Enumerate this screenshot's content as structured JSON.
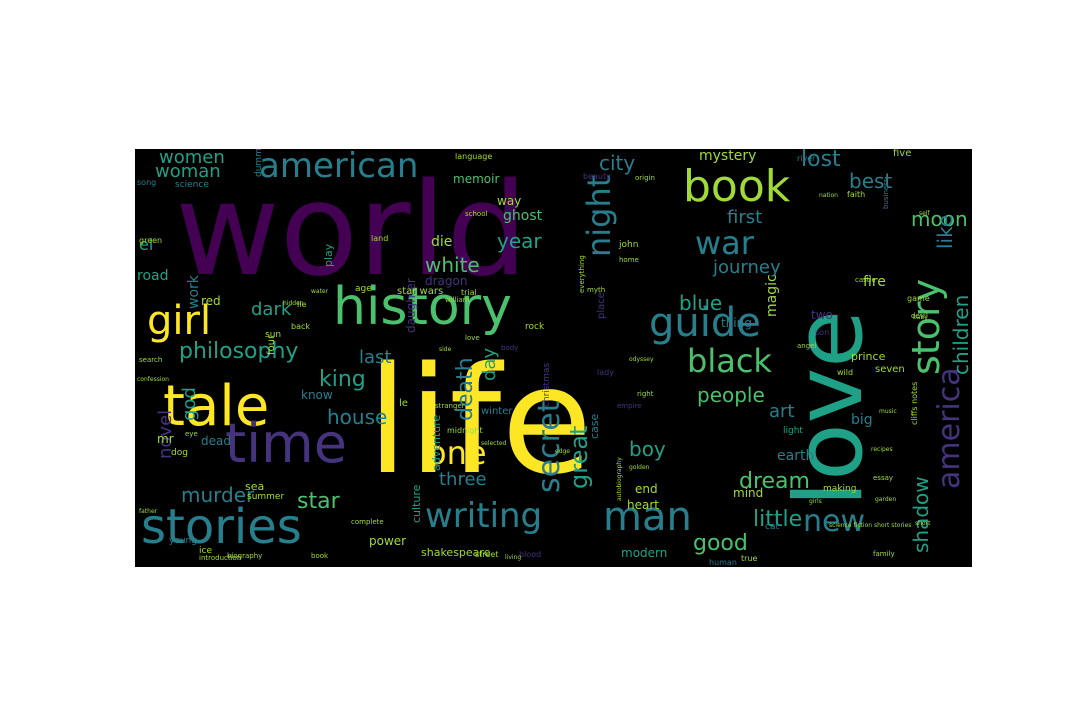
{
  "palette": {
    "purple": "#440154",
    "indigo": "#46337e",
    "slate": "#365c8d",
    "teal": "#277f8e",
    "green": "#1fa187",
    "lime": "#4ac16d",
    "chartreuse": "#a0da39",
    "yellow": "#fde725"
  },
  "words": [
    {
      "text": "world"
    },
    {
      "text": "life"
    },
    {
      "text": "love"
    },
    {
      "text": "history"
    },
    {
      "text": "tale"
    },
    {
      "text": "time"
    },
    {
      "text": "stories"
    },
    {
      "text": "book"
    },
    {
      "text": "guide"
    },
    {
      "text": "girl"
    },
    {
      "text": "man"
    },
    {
      "text": "writing"
    },
    {
      "text": "american"
    },
    {
      "text": "black"
    },
    {
      "text": "story"
    },
    {
      "text": "america"
    },
    {
      "text": "war"
    },
    {
      "text": "night"
    },
    {
      "text": "secret"
    },
    {
      "text": "one"
    },
    {
      "text": "new"
    },
    {
      "text": "philosophy"
    },
    {
      "text": "great"
    },
    {
      "text": "children"
    },
    {
      "text": "shadow"
    },
    {
      "text": "death"
    },
    {
      "text": "dream"
    },
    {
      "text": "little"
    },
    {
      "text": "good"
    },
    {
      "text": "people"
    },
    {
      "text": "king"
    },
    {
      "text": "house"
    },
    {
      "text": "star"
    },
    {
      "text": "murder"
    },
    {
      "text": "boy"
    },
    {
      "text": "city"
    },
    {
      "text": "lost"
    },
    {
      "text": "best"
    },
    {
      "text": "moon"
    },
    {
      "text": "like"
    },
    {
      "text": "first"
    },
    {
      "text": "year"
    },
    {
      "text": "white"
    },
    {
      "text": "blue"
    },
    {
      "text": "journey"
    },
    {
      "text": "women"
    },
    {
      "text": "woman"
    },
    {
      "text": "dark"
    },
    {
      "text": "last"
    },
    {
      "text": "day"
    },
    {
      "text": "art"
    },
    {
      "text": "three"
    },
    {
      "text": "novel"
    },
    {
      "text": "god"
    },
    {
      "text": "el"
    },
    {
      "text": "mystery"
    },
    {
      "text": "fire"
    },
    {
      "text": "ghost"
    },
    {
      "text": "die"
    },
    {
      "text": "road"
    },
    {
      "text": "work"
    },
    {
      "text": "red"
    },
    {
      "text": "dead"
    },
    {
      "text": "magic"
    },
    {
      "text": "earth"
    },
    {
      "text": "big"
    },
    {
      "text": "end"
    },
    {
      "text": "heart"
    },
    {
      "text": "memoir"
    },
    {
      "text": "way"
    },
    {
      "text": "thing"
    },
    {
      "text": "know"
    },
    {
      "text": "mr"
    },
    {
      "text": "power"
    },
    {
      "text": "modern"
    },
    {
      "text": "shakespeare"
    },
    {
      "text": "mind"
    },
    {
      "text": "two"
    },
    {
      "text": "five"
    },
    {
      "text": "river"
    },
    {
      "text": "faith"
    },
    {
      "text": "dragon"
    },
    {
      "text": "daughter"
    },
    {
      "text": "play"
    },
    {
      "text": "culture"
    },
    {
      "text": "adventure"
    },
    {
      "text": "winter"
    },
    {
      "text": "case"
    },
    {
      "text": "prince"
    },
    {
      "text": "seven"
    },
    {
      "text": "sea"
    },
    {
      "text": "summer"
    },
    {
      "text": "light"
    },
    {
      "text": "making"
    },
    {
      "text": "john"
    },
    {
      "text": "science"
    },
    {
      "text": "dummies"
    },
    {
      "text": "business"
    },
    {
      "text": "song"
    },
    {
      "text": "language"
    },
    {
      "text": "land"
    },
    {
      "text": "beauty"
    },
    {
      "text": "four"
    },
    {
      "text": "star wars"
    },
    {
      "text": "cat"
    },
    {
      "text": "human"
    },
    {
      "text": "family"
    },
    {
      "text": "blood"
    },
    {
      "text": "street"
    },
    {
      "text": "ice"
    },
    {
      "text": "true"
    },
    {
      "text": "young"
    },
    {
      "text": "sun"
    },
    {
      "text": "back"
    },
    {
      "text": "age"
    },
    {
      "text": "trial"
    },
    {
      "text": "william"
    },
    {
      "text": "myth"
    },
    {
      "text": "rock"
    },
    {
      "text": "place"
    },
    {
      "text": "christmas"
    },
    {
      "text": "lady"
    },
    {
      "text": "son"
    },
    {
      "text": "castle"
    },
    {
      "text": "empire"
    },
    {
      "text": "right"
    },
    {
      "text": "le"
    },
    {
      "text": "green"
    },
    {
      "text": "home"
    },
    {
      "text": "everything"
    },
    {
      "text": "school"
    },
    {
      "text": "lie"
    },
    {
      "text": "dog"
    },
    {
      "text": "eye"
    },
    {
      "text": "midnight"
    },
    {
      "text": "stranger"
    },
    {
      "text": "cliffs notes"
    },
    {
      "text": "origin"
    },
    {
      "text": "angel"
    },
    {
      "text": "devil"
    },
    {
      "text": "game"
    },
    {
      "text": "baby"
    },
    {
      "text": "wild"
    },
    {
      "text": "biography"
    },
    {
      "text": "introduction"
    },
    {
      "text": "complete"
    },
    {
      "text": "book"
    },
    {
      "text": "search"
    },
    {
      "text": "confession"
    },
    {
      "text": "music"
    },
    {
      "text": "body"
    },
    {
      "text": "essay"
    },
    {
      "text": "odyssey"
    },
    {
      "text": "water"
    },
    {
      "text": "hidden"
    },
    {
      "text": "father"
    },
    {
      "text": "living"
    },
    {
      "text": "recipes"
    },
    {
      "text": "side"
    },
    {
      "text": "self"
    },
    {
      "text": "autobiography"
    },
    {
      "text": "golden"
    },
    {
      "text": "nation"
    },
    {
      "text": "selected"
    },
    {
      "text": "edge"
    },
    {
      "text": "short"
    },
    {
      "text": "girls"
    },
    {
      "text": "garden"
    },
    {
      "text": "science fiction short stories"
    },
    {
      "text": "love"
    }
  ]
}
